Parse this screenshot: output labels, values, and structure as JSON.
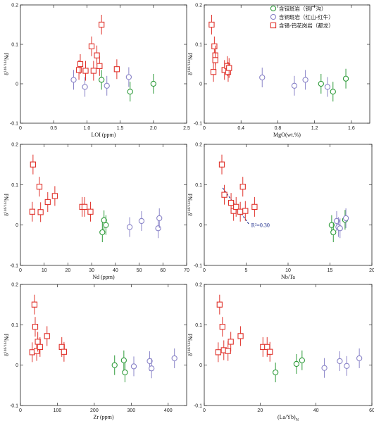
{
  "colors": {
    "green": "#2e9b3a",
    "purple": "#8a84c8",
    "red": "#e0332c",
    "fit": "#1a2a8a"
  },
  "legend": [
    {
      "label": "含钼斑岩（铜厂沟）",
      "color": "#2e9b3a",
      "marker": "circle"
    },
    {
      "label": "含铜斑岩（红山-红牛）",
      "color": "#8a84c8",
      "marker": "circle"
    },
    {
      "label": "含锡-钨花岗岩（都龙）",
      "color": "#e0332c",
      "marker": "square"
    }
  ],
  "chart_data": [
    {
      "type": "scatter",
      "xlabel": "LOI (ppm)",
      "ylabel": "δ146/144Nd",
      "xlim": [
        0,
        2.5
      ],
      "ylim": [
        -0.1,
        0.2
      ],
      "xticks": [
        "0",
        "0.5",
        "1.0",
        "1.5",
        "2.0",
        "2.5"
      ],
      "yticks": [
        "-0.1",
        "0",
        "0.1",
        "0.2"
      ],
      "series": [
        {
          "group": "green",
          "points": [
            [
              1.22,
              0.01
            ],
            [
              1.65,
              -0.02
            ],
            [
              2.0,
              0.0
            ]
          ]
        },
        {
          "group": "purple",
          "points": [
            [
              0.8,
              0.01
            ],
            [
              0.97,
              -0.008
            ],
            [
              1.3,
              -0.005
            ],
            [
              1.63,
              0.017
            ]
          ]
        },
        {
          "group": "red",
          "points": [
            [
              0.88,
              0.035
            ],
            [
              0.9,
              0.05
            ],
            [
              0.98,
              0.033
            ],
            [
              1.07,
              0.095
            ],
            [
              1.1,
              0.033
            ],
            [
              1.15,
              0.072
            ],
            [
              1.19,
              0.045
            ],
            [
              1.22,
              0.15
            ],
            [
              1.45,
              0.037
            ]
          ]
        }
      ]
    },
    {
      "type": "scatter",
      "xlabel": "MgO(wt.%)",
      "ylabel": "δ146/144Nd",
      "xlim": [
        0,
        1.8
      ],
      "ylim": [
        -0.1,
        0.2
      ],
      "xticks": [
        "0",
        "0.4",
        "0.8",
        "1.2",
        "1.6"
      ],
      "yticks": [
        "-0.1",
        "0",
        "0.1",
        "0.2"
      ],
      "series": [
        {
          "group": "green",
          "points": [
            [
              1.27,
              0.0
            ],
            [
              1.4,
              -0.02
            ],
            [
              1.54,
              0.013
            ]
          ]
        },
        {
          "group": "purple",
          "points": [
            [
              0.63,
              0.016
            ],
            [
              0.98,
              -0.005
            ],
            [
              1.1,
              0.01
            ],
            [
              1.34,
              -0.008
            ]
          ]
        },
        {
          "group": "red",
          "points": [
            [
              0.08,
              0.15
            ],
            [
              0.1,
              0.03
            ],
            [
              0.11,
              0.095
            ],
            [
              0.12,
              0.072
            ],
            [
              0.12,
              0.06
            ],
            [
              0.22,
              0.035
            ],
            [
              0.25,
              0.045
            ],
            [
              0.26,
              0.03
            ],
            [
              0.27,
              0.04
            ]
          ]
        }
      ]
    },
    {
      "type": "scatter",
      "xlabel": "Nd (ppm)",
      "ylabel": "δ146/144Nd",
      "xlim": [
        0,
        70
      ],
      "ylim": [
        -0.1,
        0.2
      ],
      "xticks": [
        "0",
        "10",
        "20",
        "30",
        "40",
        "50",
        "60",
        "70"
      ],
      "yticks": [
        "-0.1",
        "0",
        "0.1",
        "0.2"
      ],
      "series": [
        {
          "group": "green",
          "points": [
            [
              34.5,
              -0.018
            ],
            [
              35.2,
              0.012
            ],
            [
              36.0,
              0.0
            ]
          ]
        },
        {
          "group": "purple",
          "points": [
            [
              46.0,
              -0.005
            ],
            [
              51.0,
              0.01
            ],
            [
              58.0,
              -0.008
            ],
            [
              58.5,
              0.017
            ]
          ]
        },
        {
          "group": "red",
          "points": [
            [
              5.0,
              0.033
            ],
            [
              5.3,
              0.15
            ],
            [
              8.0,
              0.095
            ],
            [
              8.5,
              0.032
            ],
            [
              11.5,
              0.057
            ],
            [
              14.5,
              0.072
            ],
            [
              26.0,
              0.045
            ],
            [
              27.0,
              0.045
            ],
            [
              29.5,
              0.033
            ]
          ]
        }
      ]
    },
    {
      "type": "scatter",
      "xlabel": "Nb/Ta",
      "ylabel": "δ146/144Nd",
      "xlim": [
        0,
        20
      ],
      "ylim": [
        -0.1,
        0.2
      ],
      "xticks": [
        "0",
        "5",
        "10",
        "15",
        "20"
      ],
      "yticks": [
        "-0.1",
        "0",
        "0.1",
        "0.2"
      ],
      "annotation": "R²=0.30",
      "fit": [
        [
          2.2,
          0.092
        ],
        [
          5.3,
          0.003
        ]
      ],
      "series": [
        {
          "group": "green",
          "points": [
            [
              15.2,
              0.0
            ],
            [
              15.4,
              -0.018
            ],
            [
              16.8,
              0.013
            ]
          ]
        },
        {
          "group": "purple",
          "points": [
            [
              15.8,
              0.01
            ],
            [
              16.0,
              -0.005
            ],
            [
              16.2,
              -0.008
            ],
            [
              16.9,
              0.017
            ]
          ]
        },
        {
          "group": "red",
          "points": [
            [
              2.1,
              0.15
            ],
            [
              2.4,
              0.075
            ],
            [
              3.2,
              0.055
            ],
            [
              3.5,
              0.035
            ],
            [
              3.8,
              0.045
            ],
            [
              4.3,
              0.033
            ],
            [
              4.6,
              0.095
            ],
            [
              4.9,
              0.035
            ],
            [
              6.0,
              0.045
            ]
          ]
        }
      ]
    },
    {
      "type": "scatter",
      "xlabel": "Zr (ppm)",
      "ylabel": "δ146/144Nd",
      "xlim": [
        0,
        450
      ],
      "ylim": [
        -0.1,
        0.2
      ],
      "xticks": [
        "0",
        "100",
        "200",
        "300",
        "400"
      ],
      "yticks": [
        "-0.1",
        "0",
        "0.1",
        "0.2"
      ],
      "series": [
        {
          "group": "green",
          "points": [
            [
              255,
              0.0
            ],
            [
              280,
              0.012
            ],
            [
              283,
              -0.018
            ]
          ]
        },
        {
          "group": "purple",
          "points": [
            [
              307,
              -0.003
            ],
            [
              350,
              0.01
            ],
            [
              355,
              -0.008
            ],
            [
              417,
              0.017
            ]
          ]
        },
        {
          "group": "red",
          "points": [
            [
              32,
              0.032
            ],
            [
              38,
              0.15
            ],
            [
              40,
              0.095
            ],
            [
              44,
              0.035
            ],
            [
              47,
              0.058
            ],
            [
              53,
              0.045
            ],
            [
              72,
              0.072
            ],
            [
              112,
              0.045
            ],
            [
              118,
              0.033
            ]
          ]
        }
      ]
    },
    {
      "type": "scatter",
      "xlabel": "(La/Yb)N",
      "ylabel": "δ146/144Nd",
      "xlim": [
        0,
        60
      ],
      "ylim": [
        -0.1,
        0.2
      ],
      "xticks": [
        "0",
        "20",
        "40",
        "60"
      ],
      "yticks": [
        "-0.1",
        "0",
        "0.1",
        "0.2"
      ],
      "series": [
        {
          "group": "green",
          "points": [
            [
              25.5,
              -0.018
            ],
            [
              33.0,
              0.003
            ],
            [
              35.0,
              0.012
            ]
          ]
        },
        {
          "group": "purple",
          "points": [
            [
              43.0,
              -0.007
            ],
            [
              48.5,
              0.01
            ],
            [
              51.0,
              -0.002
            ],
            [
              55.5,
              0.017
            ]
          ]
        },
        {
          "group": "red",
          "points": [
            [
              5.0,
              0.032
            ],
            [
              5.5,
              0.15
            ],
            [
              6.5,
              0.095
            ],
            [
              7.0,
              0.037
            ],
            [
              8.5,
              0.035
            ],
            [
              9.5,
              0.058
            ],
            [
              13.0,
              0.072
            ],
            [
              21.0,
              0.045
            ],
            [
              22.5,
              0.045
            ],
            [
              23.5,
              0.033
            ]
          ]
        }
      ]
    }
  ]
}
